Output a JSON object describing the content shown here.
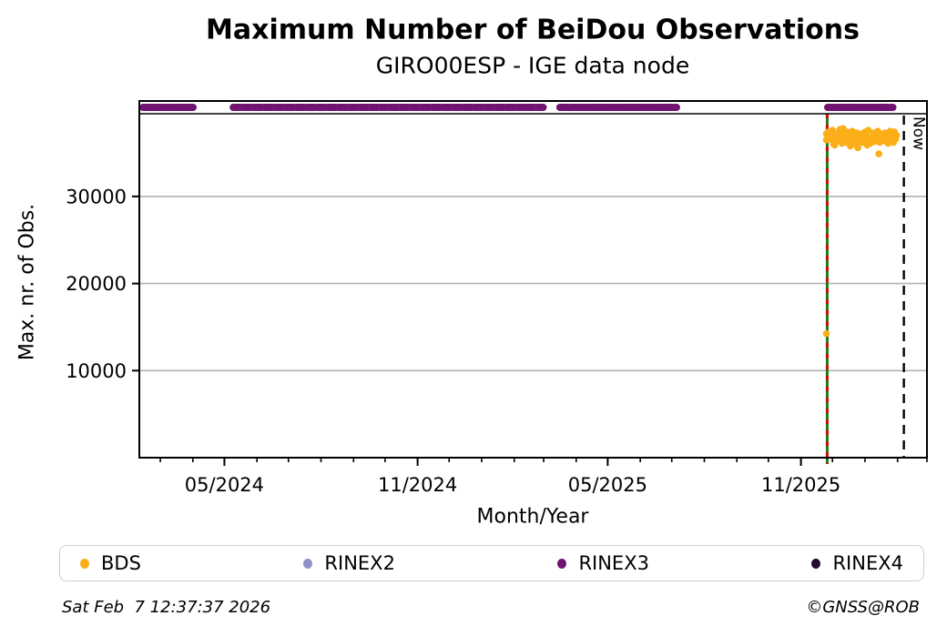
{
  "header": {
    "title": "Maximum Number of BeiDou Observations",
    "subtitle": "GIRO00ESP - IGE data node"
  },
  "footer": {
    "timestamp": "Sat Feb  7 12:37:37 2026",
    "credit": "©GNSS@ROB"
  },
  "legend": {
    "items": [
      {
        "label": "BDS",
        "color": "#FBAE17"
      },
      {
        "label": "RINEX2",
        "color": "#918FC7"
      },
      {
        "label": "RINEX3",
        "color": "#711471"
      },
      {
        "label": "RINEX4",
        "color": "#250A33"
      }
    ]
  },
  "chart_data": {
    "type": "scatter",
    "title": "Maximum Number of BeiDou Observations",
    "subtitle": "GIRO00ESP - IGE data node",
    "xlabel": "Month/Year",
    "ylabel": "Max. nr. of Obs.",
    "x_range": [
      "2024-02-10",
      "2026-03-01"
    ],
    "y_range": [
      0,
      39500
    ],
    "grid": "horizontal",
    "grid_color": "#b3b3b3",
    "frame_color": "#000000",
    "x_major_ticks": [
      {
        "date": "2024-05-01",
        "label": "05/2024"
      },
      {
        "date": "2024-11-01",
        "label": "11/2024"
      },
      {
        "date": "2025-05-01",
        "label": "05/2025"
      },
      {
        "date": "2025-11-01",
        "label": "11/2025"
      }
    ],
    "x_minor_tick_interval": "month",
    "y_ticks": [
      {
        "value": 10000,
        "label": "10000"
      },
      {
        "value": 20000,
        "label": "20000"
      },
      {
        "value": 30000,
        "label": "30000"
      }
    ],
    "now_line": {
      "date": "2026-02-07",
      "label": "Now",
      "color": "#000000",
      "style": "dashed"
    },
    "event_line": {
      "date": "2025-11-26",
      "color_solid": "#1d7a1d",
      "color_dash": "#cc1100"
    },
    "series": [
      {
        "name": "BDS",
        "color": "#FBAE17",
        "kind": "scatter",
        "points": [
          [
            "2025-11-26",
            14250
          ],
          [
            "2025-11-26",
            37200
          ],
          [
            "2025-11-26",
            36500
          ],
          [
            "2025-11-27",
            36900
          ],
          [
            "2025-11-28",
            37400
          ],
          [
            "2025-11-29",
            36500
          ],
          [
            "2025-11-30",
            37100
          ],
          [
            "2025-12-01",
            36000
          ],
          [
            "2025-12-02",
            37600
          ],
          [
            "2025-12-03",
            36800
          ],
          [
            "2025-12-04",
            35900
          ],
          [
            "2025-12-05",
            37200
          ],
          [
            "2025-12-06",
            36400
          ],
          [
            "2025-12-07",
            37700
          ],
          [
            "2025-12-08",
            36900
          ],
          [
            "2025-12-09",
            36100
          ],
          [
            "2025-12-10",
            37300
          ],
          [
            "2025-12-11",
            36600
          ],
          [
            "2025-12-12",
            37800
          ],
          [
            "2025-12-13",
            36200
          ],
          [
            "2025-12-14",
            37000
          ],
          [
            "2025-12-15",
            36500
          ],
          [
            "2025-12-16",
            37400
          ],
          [
            "2025-12-17",
            35800
          ],
          [
            "2025-12-18",
            36900
          ],
          [
            "2025-12-19",
            37500
          ],
          [
            "2025-12-20",
            36300
          ],
          [
            "2025-12-21",
            37100
          ],
          [
            "2025-12-22",
            36700
          ],
          [
            "2025-12-23",
            37300
          ],
          [
            "2025-12-24",
            36000
          ],
          [
            "2025-12-25",
            36800
          ],
          [
            "2025-12-26",
            35600
          ],
          [
            "2025-12-27",
            37200
          ],
          [
            "2025-12-28",
            36500
          ],
          [
            "2025-12-29",
            37000
          ],
          [
            "2025-12-30",
            36200
          ],
          [
            "2025-12-31",
            37400
          ],
          [
            "2026-01-01",
            36700
          ],
          [
            "2026-01-02",
            35900
          ],
          [
            "2026-01-03",
            37100
          ],
          [
            "2026-01-04",
            36400
          ],
          [
            "2026-01-05",
            37600
          ],
          [
            "2026-01-06",
            36800
          ],
          [
            "2026-01-07",
            36100
          ],
          [
            "2026-01-08",
            37300
          ],
          [
            "2026-01-09",
            36600
          ],
          [
            "2026-01-10",
            37000
          ],
          [
            "2026-01-11",
            36300
          ],
          [
            "2026-01-12",
            37500
          ],
          [
            "2026-01-13",
            36900
          ],
          [
            "2026-01-14",
            36200
          ],
          [
            "2026-01-15",
            34900
          ],
          [
            "2026-01-16",
            36600
          ],
          [
            "2026-01-17",
            37200
          ],
          [
            "2026-01-18",
            36400
          ],
          [
            "2026-01-19",
            37000
          ],
          [
            "2026-01-20",
            36700
          ],
          [
            "2026-01-21",
            37300
          ],
          [
            "2026-01-22",
            36100
          ],
          [
            "2026-01-23",
            36900
          ],
          [
            "2026-01-24",
            37500
          ],
          [
            "2026-01-25",
            36500
          ],
          [
            "2026-01-26",
            37100
          ],
          [
            "2026-01-27",
            36800
          ],
          [
            "2026-01-28",
            37400
          ],
          [
            "2026-01-29",
            36200
          ],
          [
            "2026-01-30",
            37000
          ],
          [
            "2026-01-31",
            36600
          ]
        ]
      },
      {
        "name": "RINEX2",
        "color": "#918FC7",
        "kind": "availability",
        "segments": []
      },
      {
        "name": "RINEX3",
        "color": "#711471",
        "kind": "availability",
        "segments": [
          [
            "2024-02-10",
            "2024-04-06"
          ],
          [
            "2024-05-06",
            "2025-03-04"
          ],
          [
            "2025-03-13",
            "2025-07-09"
          ],
          [
            "2025-11-23",
            "2026-01-31"
          ]
        ]
      },
      {
        "name": "RINEX4",
        "color": "#250A33",
        "kind": "availability",
        "segments": []
      }
    ]
  }
}
